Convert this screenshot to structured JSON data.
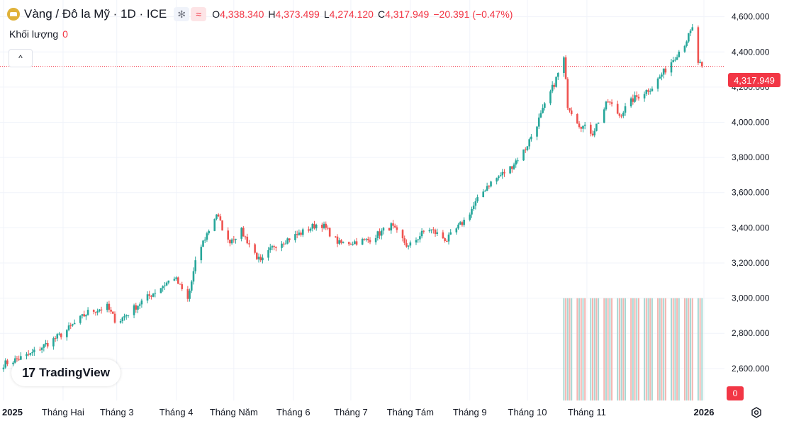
{
  "header": {
    "title": "Vàng / Đô la Mỹ · 1D · ICE",
    "chip_a_symbol": "✻",
    "chip_b_symbol": "≈",
    "open_label": "O",
    "open_value": "4,338.340",
    "high_label": "H",
    "high_value": "4,373.499",
    "low_label": "L",
    "low_value": "4,274.120",
    "close_label": "C",
    "close_value": "4,317.949",
    "change": "−20.391 (−0.47%)"
  },
  "volume": {
    "label": "Khối lượng",
    "value": "0"
  },
  "collapse_symbol": "^",
  "brand": {
    "mark": "17",
    "name": "TradingView"
  },
  "last_price_tag": "4,317.949",
  "volume_tag": "0",
  "colors": {
    "up": "#26a69a",
    "down": "#ef5350",
    "up_vol": "#a8d8d3",
    "down_vol": "#f4b4b0",
    "price_line": "#f23645",
    "grid": "#f0f3fa",
    "axis_text": "#131722"
  },
  "icons": {
    "logo": "gold-bar-icon",
    "settings": "gear-icon"
  },
  "chart_data": {
    "type": "candlestick",
    "y_ticks": [
      "2,600.000",
      "2,800.000",
      "3,000.000",
      "3,200.000",
      "3,400.000",
      "3,600.000",
      "3,800.000",
      "4,000.000",
      "4,200.000",
      "4,400.000",
      "4,600.000"
    ],
    "y_tick_values": [
      2600,
      2800,
      3000,
      3200,
      3400,
      3600,
      3800,
      4000,
      4200,
      4400,
      4600
    ],
    "ylim": [
      2418,
      4655
    ],
    "x_tick_labels": [
      {
        "label": "2025",
        "date": "2025-01-01",
        "bold": true
      },
      {
        "label": "Tháng Hai",
        "date": "2025-02-01"
      },
      {
        "label": "Tháng 3",
        "date": "2025-03-01"
      },
      {
        "label": "Tháng 4",
        "date": "2025-04-01"
      },
      {
        "label": "Tháng Năm",
        "date": "2025-05-01"
      },
      {
        "label": "Tháng 6",
        "date": "2025-06-01"
      },
      {
        "label": "Tháng 7",
        "date": "2025-07-01"
      },
      {
        "label": "Tháng Tám",
        "date": "2025-08-01"
      },
      {
        "label": "Tháng 9",
        "date": "2025-09-01"
      },
      {
        "label": "Tháng 10",
        "date": "2025-10-01"
      },
      {
        "label": "Tháng 11",
        "date": "2025-11-01"
      },
      {
        "label": "2026",
        "date": "2026-01-01",
        "bold": true
      }
    ],
    "xlim": [
      "2025-01-01",
      "2026-01-01"
    ],
    "last_price": 4317.949,
    "series_close": [
      [
        "2025-01-01",
        2625
      ],
      [
        "2025-01-15",
        2680
      ],
      [
        "2025-02-01",
        2800
      ],
      [
        "2025-02-14",
        2920
      ],
      [
        "2025-02-24",
        2950
      ],
      [
        "2025-03-01",
        2860
      ],
      [
        "2025-03-14",
        2980
      ],
      [
        "2025-03-31",
        3120
      ],
      [
        "2025-04-07",
        2990
      ],
      [
        "2025-04-12",
        3250
      ],
      [
        "2025-04-22",
        3480
      ],
      [
        "2025-04-28",
        3320
      ],
      [
        "2025-05-05",
        3380
      ],
      [
        "2025-05-15",
        3200
      ],
      [
        "2025-05-22",
        3300
      ],
      [
        "2025-06-05",
        3370
      ],
      [
        "2025-06-15",
        3430
      ],
      [
        "2025-06-25",
        3310
      ],
      [
        "2025-07-10",
        3330
      ],
      [
        "2025-07-22",
        3410
      ],
      [
        "2025-07-31",
        3290
      ],
      [
        "2025-08-10",
        3400
      ],
      [
        "2025-08-20",
        3330
      ],
      [
        "2025-08-29",
        3440
      ],
      [
        "2025-09-10",
        3640
      ],
      [
        "2025-09-22",
        3740
      ],
      [
        "2025-09-30",
        3850
      ],
      [
        "2025-10-08",
        4040
      ],
      [
        "2025-10-15",
        4220
      ],
      [
        "2025-10-20",
        4360
      ],
      [
        "2025-10-22",
        4100
      ],
      [
        "2025-10-28",
        3990
      ],
      [
        "2025-11-04",
        3940
      ],
      [
        "2025-11-12",
        4120
      ],
      [
        "2025-11-18",
        4040
      ],
      [
        "2025-11-25",
        4130
      ],
      [
        "2025-12-05",
        4200
      ],
      [
        "2025-12-12",
        4300
      ],
      [
        "2025-12-22",
        4450
      ],
      [
        "2025-12-26",
        4530
      ],
      [
        "2025-12-29",
        4340
      ],
      [
        "2025-12-31",
        4317.949
      ]
    ],
    "series_volume_dates": [
      "2025-10-20",
      "2025-12-31"
    ],
    "volume_display_top": 3000,
    "volume_display_bottom": 2418
  }
}
